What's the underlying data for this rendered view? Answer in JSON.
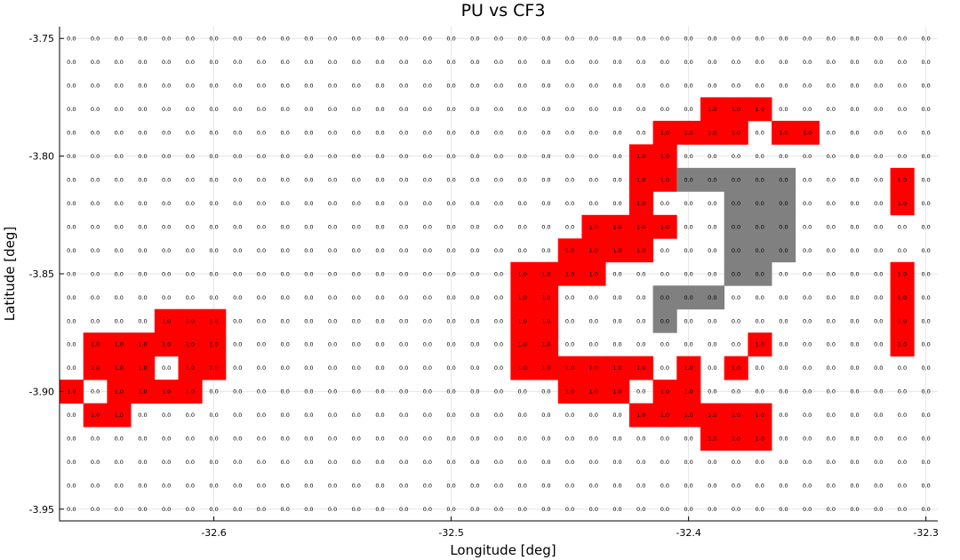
{
  "chart_data": {
    "type": "heatmap",
    "title": "PU vs CF3",
    "xlabel": "Longitude [deg]",
    "ylabel": "Latitude [deg]",
    "grid": true,
    "legend": "none",
    "xlim": [
      -32.665,
      -32.295
    ],
    "ylim": [
      -3.955,
      -3.745
    ],
    "x_ticks": [
      -32.6,
      -32.5,
      -32.4,
      -32.3
    ],
    "x_tick_labels": [
      "-32.6",
      "-32.5",
      "-32.4",
      "-32.3"
    ],
    "y_ticks": [
      -3.75,
      -3.8,
      -3.85,
      -3.9,
      -3.95
    ],
    "y_tick_labels": [
      "-3.75",
      "-3.80",
      "-3.85",
      "-3.90",
      "-3.95"
    ],
    "x_start": -32.66,
    "x_step": 0.01,
    "y_start": -3.75,
    "y_step": -0.01,
    "colors": {
      "0": "#ffffff",
      "1": "#ff0000",
      "2": "#808080"
    },
    "value_labels": {
      "0": "0.0",
      "1": "1.0",
      "2": "0.0"
    },
    "rows": [
      "0000000000000000000000000000000000000",
      "0000000000000000000000000000000000000",
      "0000000000000000000000000000000000000",
      "0000000000000000000000000001110000000",
      "0000000000000000000000000111101100000",
      "0000000000000000000000001100000000000",
      "0000000000000000000000001122222000010",
      "0000000000000000000000001000222000010",
      "0000000000000000000000111100222000000",
      "0000000000000000000001111000222000000",
      "0000000000000000000111100000220000010",
      "0000000000000000000110000222000000010",
      "0000111000000000000110000200000000010",
      "0111111000000000000110000000010000010",
      "0111011000000000000111111010100000000",
      "1011110000000000000001110110000000000",
      "0110000000000000000000001111110000000",
      "0000000000000000000000000001110000000",
      "0000000000000000000000000000000000000",
      "0000000000000000000000000000000000000",
      "0000000000000000000000000000000000000"
    ]
  }
}
